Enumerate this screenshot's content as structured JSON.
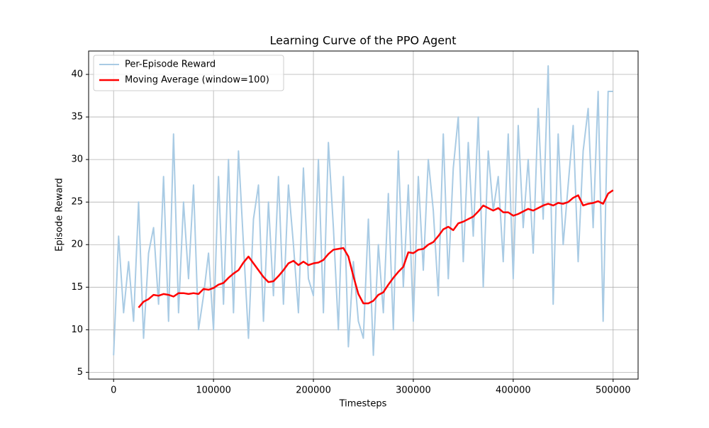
{
  "chart_data": {
    "type": "line",
    "title": "Learning Curve of the PPO Agent",
    "x_label": "Timesteps",
    "y_label": "Episode Reward",
    "x": [
      0,
      5000,
      10000,
      15000,
      20000,
      25000,
      30000,
      35000,
      40000,
      45000,
      50000,
      55000,
      60000,
      65000,
      70000,
      75000,
      80000,
      85000,
      90000,
      95000,
      100000,
      105000,
      110000,
      115000,
      120000,
      125000,
      130000,
      135000,
      140000,
      145000,
      150000,
      155000,
      160000,
      165000,
      170000,
      175000,
      180000,
      185000,
      190000,
      195000,
      200000,
      205000,
      210000,
      215000,
      220000,
      225000,
      230000,
      235000,
      240000,
      245000,
      250000,
      255000,
      260000,
      265000,
      270000,
      275000,
      280000,
      285000,
      290000,
      295000,
      300000,
      305000,
      310000,
      315000,
      320000,
      325000,
      330000,
      335000,
      340000,
      345000,
      350000,
      355000,
      360000,
      365000,
      370000,
      375000,
      380000,
      385000,
      390000,
      395000,
      400000,
      405000,
      410000,
      415000,
      420000,
      425000,
      430000,
      435000,
      440000,
      445000,
      450000,
      455000,
      460000,
      465000,
      470000,
      475000,
      480000,
      485000,
      490000,
      495000,
      500000
    ],
    "series": [
      {
        "name": "Per-Episode Reward",
        "color": "#a9cbe4",
        "values": [
          7,
          21,
          12,
          18,
          11,
          25,
          9,
          19,
          22,
          13,
          28,
          11,
          33,
          12,
          25,
          16,
          27,
          10,
          14,
          19,
          10,
          28,
          13,
          30,
          12,
          31,
          20,
          9,
          23,
          27,
          11,
          25,
          14,
          28,
          13,
          27,
          20,
          12,
          29,
          16,
          14,
          30,
          12,
          32,
          22,
          10,
          28,
          8,
          18,
          11,
          9,
          23,
          7,
          20,
          12,
          26,
          10,
          31,
          15,
          27,
          11,
          28,
          17,
          30,
          24,
          14,
          33,
          16,
          29,
          35,
          18,
          32,
          21,
          35,
          15,
          31,
          24,
          28,
          18,
          33,
          16,
          34,
          22,
          30,
          19,
          36,
          23,
          41,
          13,
          33,
          20,
          27,
          34,
          18,
          31,
          36,
          22,
          38,
          11,
          38,
          38
        ]
      },
      {
        "name": "Moving Average (window=100)",
        "color": "#ff0000",
        "values": [
          null,
          null,
          null,
          null,
          null,
          12.6,
          13.3,
          13.6,
          14.1,
          14.0,
          14.2,
          14.1,
          13.9,
          14.3,
          14.3,
          14.2,
          14.3,
          14.2,
          14.8,
          14.7,
          14.9,
          15.3,
          15.5,
          16.1,
          16.6,
          17.0,
          17.9,
          18.6,
          17.8,
          17.0,
          16.2,
          15.6,
          15.7,
          16.3,
          17.0,
          17.8,
          18.1,
          17.6,
          18.0,
          17.6,
          17.8,
          17.9,
          18.2,
          18.9,
          19.4,
          19.5,
          19.6,
          18.6,
          16.3,
          14.2,
          13.1,
          13.1,
          13.4,
          14.1,
          14.4,
          15.3,
          16.1,
          16.8,
          17.4,
          19.1,
          19.0,
          19.4,
          19.5,
          20.0,
          20.3,
          21.0,
          21.8,
          22.1,
          21.7,
          22.5,
          22.7,
          23.0,
          23.3,
          23.9,
          24.6,
          24.3,
          24.0,
          24.3,
          23.8,
          23.8,
          23.4,
          23.6,
          23.9,
          24.2,
          24.0,
          24.3,
          24.6,
          24.8,
          24.6,
          24.9,
          24.8,
          25.0,
          25.5,
          25.8,
          24.6,
          24.8,
          24.9,
          25.1,
          24.8,
          26.0,
          26.4
        ]
      }
    ],
    "xlim": [
      -25000,
      525000
    ],
    "ylim": [
      4.2,
      42.75
    ],
    "xticks": [
      0,
      100000,
      200000,
      300000,
      400000,
      500000
    ],
    "yticks": [
      5,
      10,
      15,
      20,
      25,
      30,
      35,
      40
    ],
    "grid": true,
    "legend": "upper-left"
  }
}
